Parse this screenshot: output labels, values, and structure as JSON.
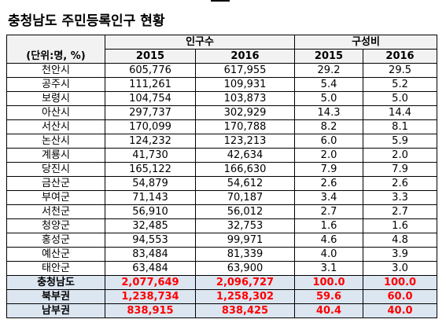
{
  "title": "충청남도 주민등록인구 현황",
  "header": {
    "unit_label": "(단위:명, %)",
    "group_population": "인구수",
    "group_ratio": "구성비",
    "years": [
      "2015",
      "2016",
      "2015",
      "2016"
    ]
  },
  "rows": [
    {
      "region": "천안시",
      "p2015": "605,776",
      "p2016": "617,955",
      "r2015": "29.2",
      "r2016": "29.5"
    },
    {
      "region": "공주시",
      "p2015": "111,261",
      "p2016": "109,931",
      "r2015": "5.4",
      "r2016": "5.2"
    },
    {
      "region": "보령시",
      "p2015": "104,754",
      "p2016": "103,873",
      "r2015": "5.0",
      "r2016": "5.0"
    },
    {
      "region": "아산시",
      "p2015": "297,737",
      "p2016": "302,929",
      "r2015": "14.3",
      "r2016": "14.4"
    },
    {
      "region": "서산시",
      "p2015": "170,099",
      "p2016": "170,788",
      "r2015": "8.2",
      "r2016": "8.1"
    },
    {
      "region": "논산시",
      "p2015": "124,232",
      "p2016": "123,213",
      "r2015": "6.0",
      "r2016": "5.9"
    },
    {
      "region": "계룡시",
      "p2015": "41,730",
      "p2016": "42,634",
      "r2015": "2.0",
      "r2016": "2.0"
    },
    {
      "region": "당진시",
      "p2015": "165,122",
      "p2016": "166,630",
      "r2015": "7.9",
      "r2016": "7.9"
    },
    {
      "region": "금산군",
      "p2015": "54,879",
      "p2016": "54,612",
      "r2015": "2.6",
      "r2016": "2.6"
    },
    {
      "region": "부여군",
      "p2015": "71,143",
      "p2016": "70,187",
      "r2015": "3.4",
      "r2016": "3.3"
    },
    {
      "region": "서천군",
      "p2015": "56,910",
      "p2016": "56,012",
      "r2015": "2.7",
      "r2016": "2.7"
    },
    {
      "region": "청양군",
      "p2015": "32,485",
      "p2016": "32,753",
      "r2015": "1.6",
      "r2016": "1.6"
    },
    {
      "region": "홍성군",
      "p2015": "94,553",
      "p2016": "99,971",
      "r2015": "4.6",
      "r2016": "4.8"
    },
    {
      "region": "예산군",
      "p2015": "83,484",
      "p2016": "81,339",
      "r2015": "4.0",
      "r2016": "3.9"
    },
    {
      "region": "태안군",
      "p2015": "63,484",
      "p2016": "63,900",
      "r2015": "3.1",
      "r2016": "3.0"
    }
  ],
  "summary": [
    {
      "region": "충청남도",
      "p2015": "2,077,649",
      "p2016": "2,096,727",
      "r2015": "100.0",
      "r2016": "100.0"
    },
    {
      "region": "북부권",
      "p2015": "1,238,734",
      "p2016": "1,258,302",
      "r2015": "59.6",
      "r2016": "60.0"
    },
    {
      "region": "남부권",
      "p2015": "838,915",
      "p2016": "838,425",
      "r2015": "40.4",
      "r2016": "40.0"
    }
  ],
  "colors": {
    "header_bg": "#f2f2f2",
    "summary_bg": "#dce6f1",
    "summary_text": "#ff0000"
  }
}
